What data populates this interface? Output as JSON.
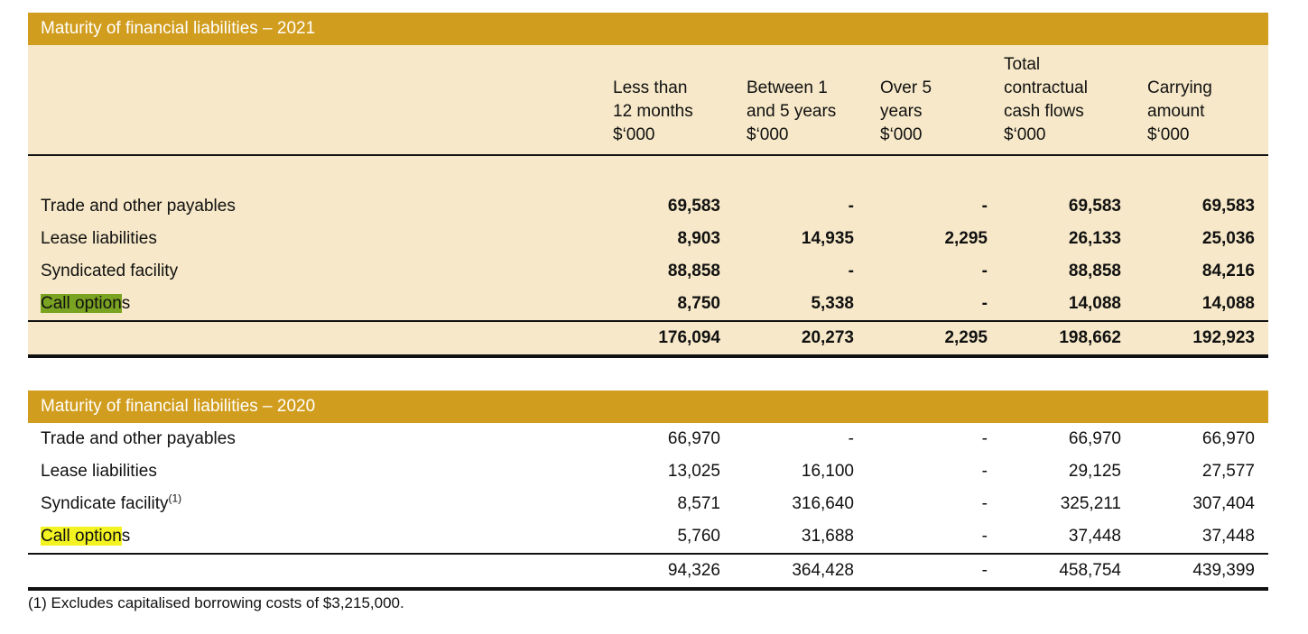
{
  "headers": {
    "c1": [
      "Less than",
      "12 months",
      "$‘000"
    ],
    "c2": [
      "Between 1",
      "and 5 years",
      "$‘000"
    ],
    "c3": [
      "Over 5",
      "years",
      "$‘000"
    ],
    "c4": [
      "Total",
      "contractual",
      "cash flows",
      "$‘000"
    ],
    "c5": [
      "Carrying",
      "amount",
      "$‘000"
    ]
  },
  "table2021": {
    "title": "Maturity of financial liabilities – 2021",
    "rows": [
      {
        "label": "Trade and other payables",
        "values": [
          "69,583",
          "-",
          "-",
          "69,583",
          "69,583"
        ]
      },
      {
        "label": "Lease liabilities",
        "values": [
          "8,903",
          "14,935",
          "2,295",
          "26,133",
          "25,036"
        ]
      },
      {
        "label": "Syndicated facility",
        "values": [
          "88,858",
          "-",
          "-",
          "88,858",
          "84,216"
        ]
      },
      {
        "label_highlight": "Call option",
        "label_rest": "s",
        "values": [
          "8,750",
          "5,338",
          "-",
          "14,088",
          "14,088"
        ]
      }
    ],
    "total": [
      "176,094",
      "20,273",
      "2,295",
      "198,662",
      "192,923"
    ]
  },
  "table2020": {
    "title": "Maturity of financial liabilities – 2020",
    "rows": [
      {
        "label": "Trade and other payables",
        "values": [
          "66,970",
          "-",
          "-",
          "66,970",
          "66,970"
        ]
      },
      {
        "label": "Lease liabilities",
        "values": [
          "13,025",
          "16,100",
          "-",
          "29,125",
          "27,577"
        ]
      },
      {
        "label": "Syndicate facility",
        "sup": "(1)",
        "values": [
          "8,571",
          "316,640",
          "-",
          "325,211",
          "307,404"
        ]
      },
      {
        "label_highlight": "Call option",
        "label_rest": "s",
        "values": [
          "5,760",
          "31,688",
          "-",
          "37,448",
          "37,448"
        ]
      }
    ],
    "total": [
      "94,326",
      "364,428",
      "-",
      "458,754",
      "439,399"
    ]
  },
  "footnote": "(1) Excludes capitalised borrowing costs of $3,215,000.",
  "colors": {
    "band": "#d19d1e",
    "cream": "#f6e8c8",
    "highlight_2021": "#7aa321",
    "highlight_2020": "#f3f321"
  }
}
